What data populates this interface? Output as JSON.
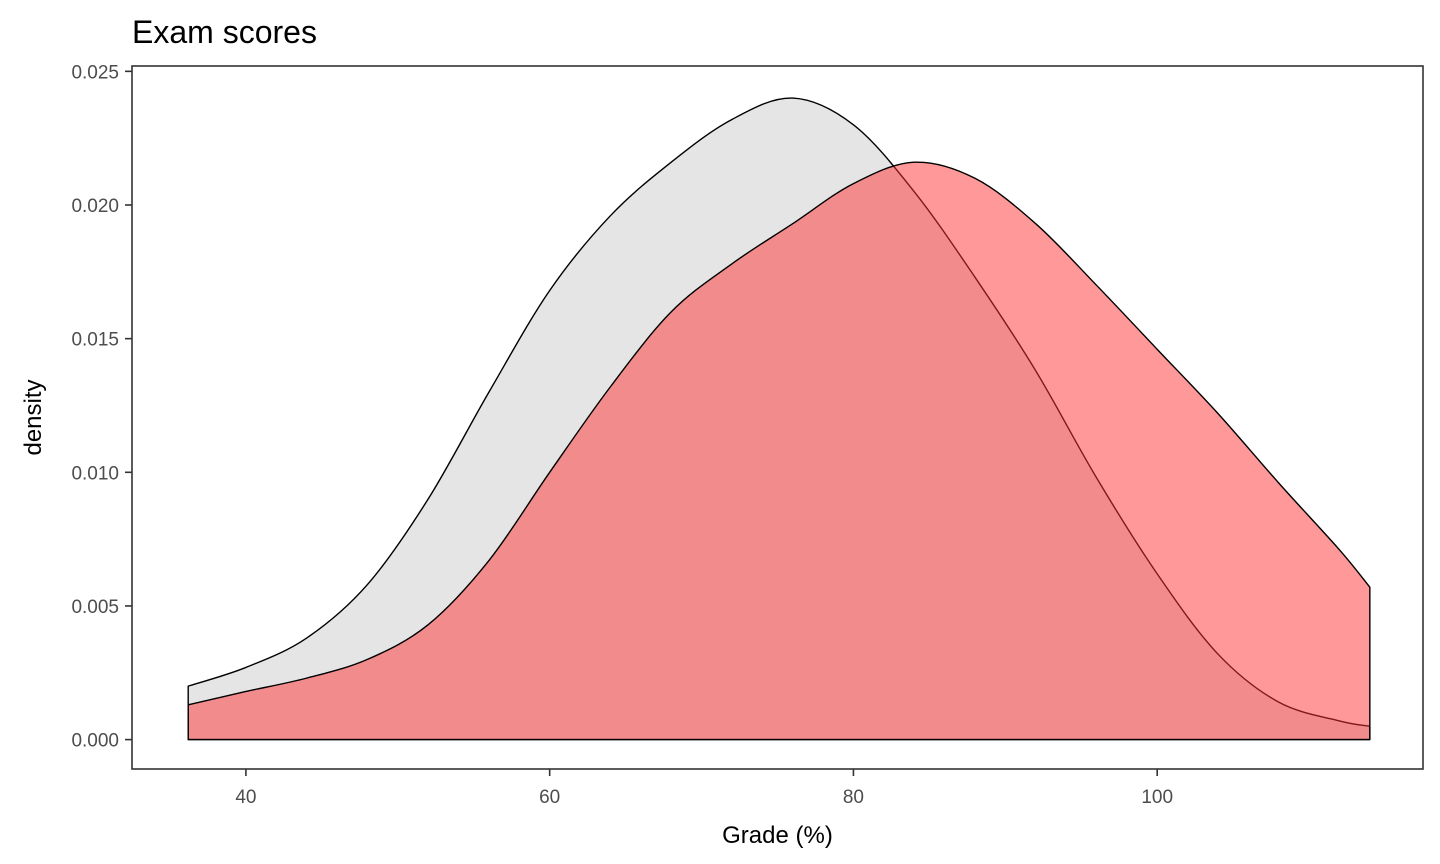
{
  "chart_data": {
    "type": "area",
    "title": "Exam scores",
    "xlabel": "Grade (%)",
    "ylabel": "density",
    "xlim": [
      32.5,
      117.5
    ],
    "ylim": [
      -0.0011,
      0.0252
    ],
    "x_ticks": [
      40,
      60,
      80,
      100
    ],
    "x_tick_labels": [
      "40",
      "60",
      "80",
      "100"
    ],
    "y_ticks": [
      0,
      0.005,
      0.01,
      0.015,
      0.02,
      0.025
    ],
    "y_tick_labels": [
      "0.000",
      "0.005",
      "0.010",
      "0.015",
      "0.020",
      "0.025"
    ],
    "grid": false,
    "legend": "none",
    "series": [
      {
        "color": "#cccccc",
        "opacity": 0.5,
        "x": [
          36.2,
          40,
          44,
          48,
          52,
          56,
          60,
          64,
          68,
          72,
          76,
          80,
          84,
          88,
          92,
          96,
          100,
          104,
          108,
          112,
          114
        ],
        "y": [
          0.002,
          0.0027,
          0.0038,
          0.0058,
          0.009,
          0.013,
          0.0168,
          0.0196,
          0.0216,
          0.0232,
          0.024,
          0.023,
          0.0205,
          0.0173,
          0.0138,
          0.0098,
          0.0062,
          0.0032,
          0.0014,
          0.0007,
          0.0005
        ]
      },
      {
        "color": "#ff3333",
        "opacity": 0.5,
        "x": [
          36.2,
          40,
          44,
          48,
          52,
          56,
          60,
          64,
          68,
          72,
          76,
          80,
          84,
          88,
          92,
          96,
          100,
          104,
          108,
          112,
          114
        ],
        "y": [
          0.0013,
          0.0018,
          0.0023,
          0.003,
          0.0043,
          0.0067,
          0.01,
          0.0132,
          0.016,
          0.0178,
          0.0193,
          0.0208,
          0.0216,
          0.021,
          0.0193,
          0.017,
          0.0146,
          0.0122,
          0.0096,
          0.0071,
          0.0057
        ]
      }
    ]
  }
}
